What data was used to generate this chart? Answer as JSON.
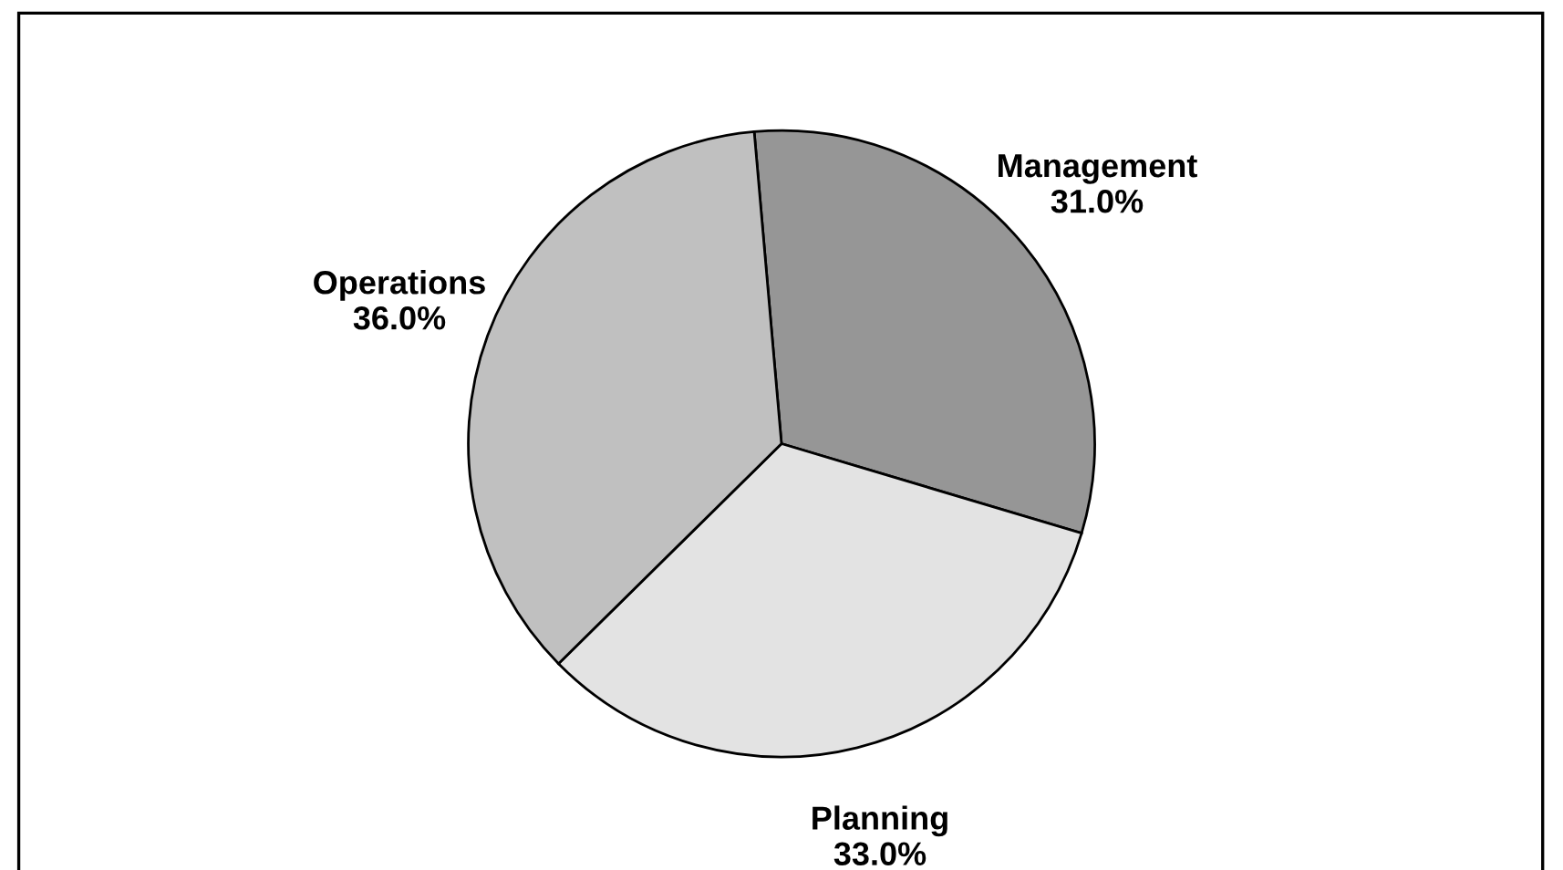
{
  "chart_data": {
    "type": "pie",
    "categories": [
      "Management",
      "Planning",
      "Operations"
    ],
    "values": [
      31,
      33,
      36
    ],
    "colors": [
      "#969696",
      "#e3e3e3",
      "#c0c0c0"
    ],
    "value_labels": [
      "31.0%",
      "33.0%",
      "36.0%"
    ],
    "legend": false
  }
}
